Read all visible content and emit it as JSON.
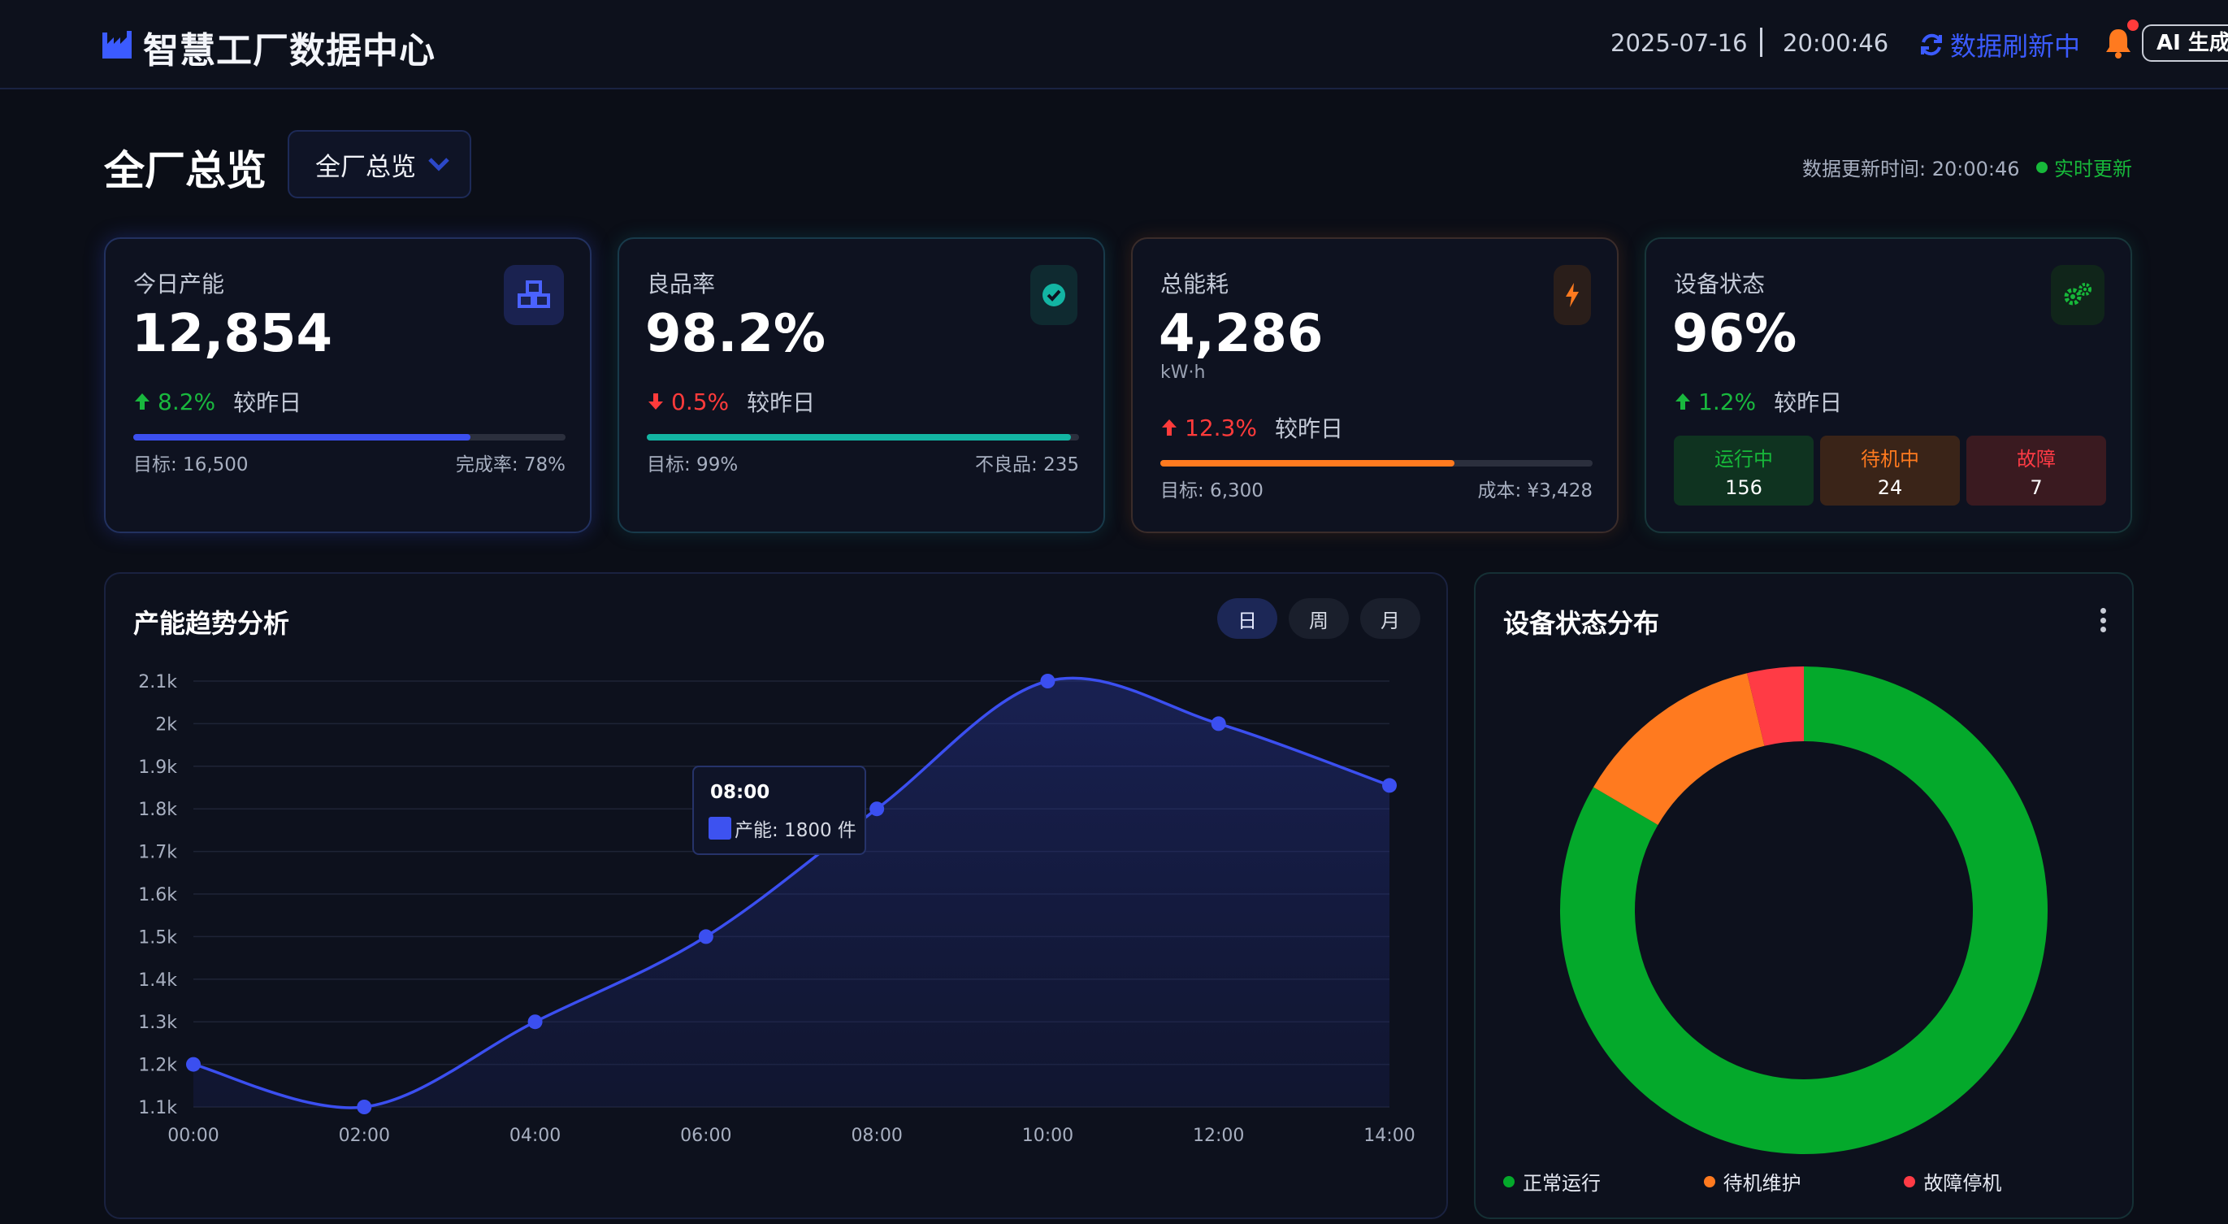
{
  "header": {
    "title": "智慧工厂数据中心",
    "date": "2025-07-16",
    "time": "20:00:46",
    "refresh_label": "数据刷新中",
    "ai_label": "AI 生成"
  },
  "page": {
    "title": "全厂总览",
    "scope_selected": "全厂总览",
    "update_text": "数据更新时间: 20:00:46",
    "live_label": "实时更新"
  },
  "kpis": {
    "output": {
      "label": "今日产能",
      "value": "12,854",
      "trend": "8.2%",
      "trend_dir": "up",
      "compare": "较昨日",
      "progress": 0.78,
      "target": "目标: 16,500",
      "completion": "完成率: 78%",
      "icon": "cubes-icon",
      "color": "#3b5bff"
    },
    "yield": {
      "label": "良品率",
      "value": "98.2%",
      "trend": "0.5%",
      "trend_dir": "down",
      "compare": "较昨日",
      "progress": 0.982,
      "target": "目标: 99%",
      "defects": "不良品: 235",
      "icon": "check-circle-icon",
      "color": "#13b5a3"
    },
    "energy": {
      "label": "总能耗",
      "value": "4,286",
      "unit": "kW·h",
      "trend": "12.3%",
      "trend_dir": "up",
      "compare": "较昨日",
      "progress": 0.68,
      "target": "目标: 6,300",
      "cost": "成本: ¥3,428",
      "icon": "bolt-icon",
      "color": "#ff7a1f"
    },
    "equipment": {
      "label": "设备状态",
      "value": "96%",
      "trend": "1.2%",
      "trend_dir": "up",
      "compare": "较昨日",
      "icon": "gears-icon",
      "color": "#17b83a",
      "running_label": "运行中",
      "running": "156",
      "standby_label": "待机中",
      "standby": "24",
      "fault_label": "故障",
      "fault": "7"
    }
  },
  "trend_panel": {
    "title": "产能趋势分析",
    "tabs": [
      "日",
      "周",
      "月"
    ],
    "active_tab": 0,
    "tooltip_title": "08:00",
    "tooltip_text": "产能: 1800 件"
  },
  "device_panel": {
    "title": "设备状态分布",
    "legend": [
      "正常运行",
      "待机维护",
      "故障停机"
    ]
  },
  "chart_data": [
    {
      "type": "area",
      "title": "产能趋势分析",
      "categories": [
        "00:00",
        "02:00",
        "04:00",
        "06:00",
        "08:00",
        "10:00",
        "12:00",
        "14:00"
      ],
      "series": [
        {
          "name": "产能",
          "values": [
            1200,
            1100,
            1300,
            1500,
            1800,
            2100,
            2000,
            1855
          ]
        }
      ],
      "ylim": [
        1100,
        2100
      ],
      "yticks": [
        "1.1k",
        "1.2k",
        "1.3k",
        "1.4k",
        "1.5k",
        "1.6k",
        "1.7k",
        "1.8k",
        "1.9k",
        "2k",
        "2.1k"
      ],
      "color": "#3b4ff0",
      "grid": true
    },
    {
      "type": "pie",
      "title": "设备状态分布",
      "categories": [
        "正常运行",
        "待机维护",
        "故障停机"
      ],
      "values": [
        156,
        24,
        7
      ],
      "colors": [
        "#04a92b",
        "#ff7a1f",
        "#ff3b45"
      ],
      "legend": "bottom"
    }
  ]
}
